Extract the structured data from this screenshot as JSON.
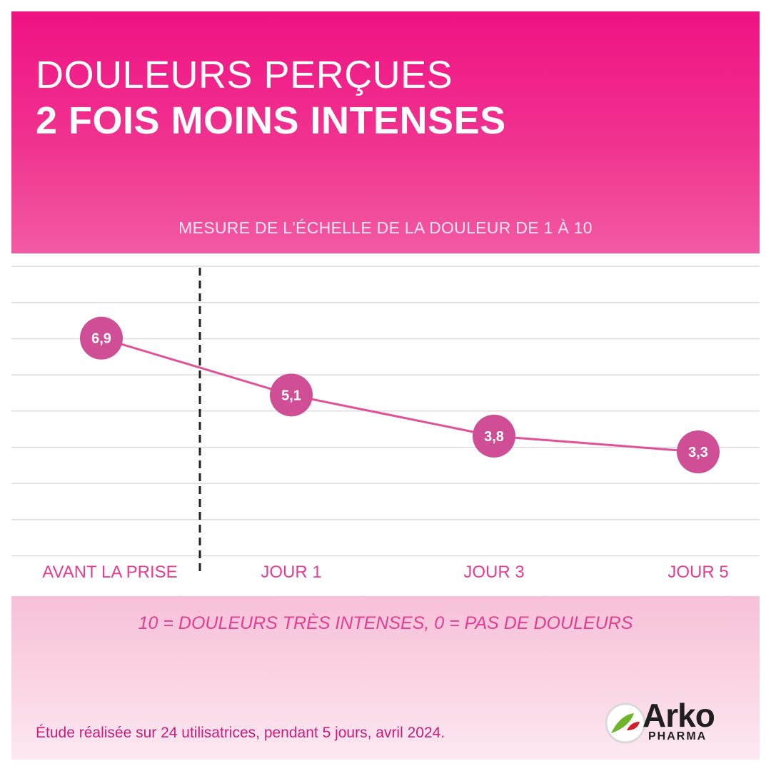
{
  "title": {
    "line1": "DOULEURS PERÇUES",
    "line2": "2 FOIS MOINS INTENSES"
  },
  "chart_caption": "MESURE DE L'ÉCHELLE DE LA DOULEUR DE 1 À 10",
  "chart_data": {
    "type": "line",
    "categories": [
      "AVANT LA PRISE",
      "JOUR 1",
      "JOUR 3",
      "JOUR 5"
    ],
    "values": [
      6.9,
      5.1,
      3.8,
      3.3
    ],
    "value_labels": [
      "6,9",
      "5,1",
      "3,8",
      "3,3"
    ],
    "title": "MESURE DE L'ÉCHELLE DE LA DOULEUR DE 1 À 10",
    "xlabel": "",
    "ylabel": "",
    "ylim": [
      0,
      8
    ],
    "grid": true,
    "separator_after_category": "AVANT LA PRISE",
    "colors": {
      "line": "#e0519a",
      "marker": "#cf4e95",
      "marker_text": "#ffffff",
      "grid": "#dcdcdc",
      "separator": "#222222",
      "tick_label": "#e53d93"
    }
  },
  "footer": {
    "scale_note": "10 = DOULEURS TRÈS INTENSES, 0 = PAS DE DOULEURS",
    "study_note": "Étude réalisée sur 24 utilisatrices, pendant 5 jours, avril 2024."
  },
  "logo": {
    "name": "Arko",
    "subtitle": "PHARMA",
    "icon": "arkopharma-leaf-logo-icon",
    "colors": {
      "green": "#6fb52c",
      "red": "#d21f2b",
      "text": "#1f1f1f"
    }
  }
}
